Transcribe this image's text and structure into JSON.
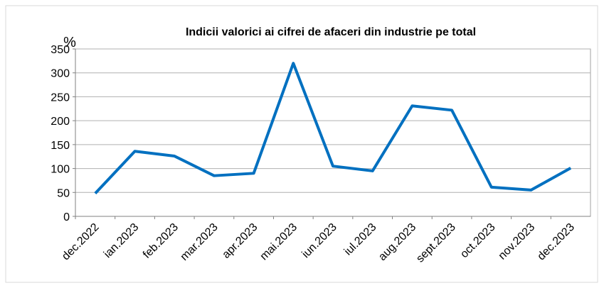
{
  "chart_data": {
    "type": "line",
    "title": "Indicii valorici ai cifrei de afaceri din industrie pe total",
    "y_label": "%",
    "categories": [
      "dec.2022",
      "ian.2023",
      "feb.2023",
      "mar.2023",
      "apr.2023",
      "mai.2023",
      "iun.2023",
      "iul.2023",
      "aug.2023",
      "sept.2023",
      "oct.2023",
      "nov.2023",
      "dec.2023"
    ],
    "series": [
      {
        "name": "Indicii valorici",
        "color": "#0070c0",
        "values": [
          48,
          136,
          126,
          85,
          90,
          320,
          105,
          95,
          231,
          222,
          61,
          55,
          101
        ]
      }
    ],
    "ylim": [
      0,
      350
    ],
    "yticks": [
      0,
      50,
      100,
      150,
      200,
      250,
      300,
      350
    ],
    "grid": true
  }
}
